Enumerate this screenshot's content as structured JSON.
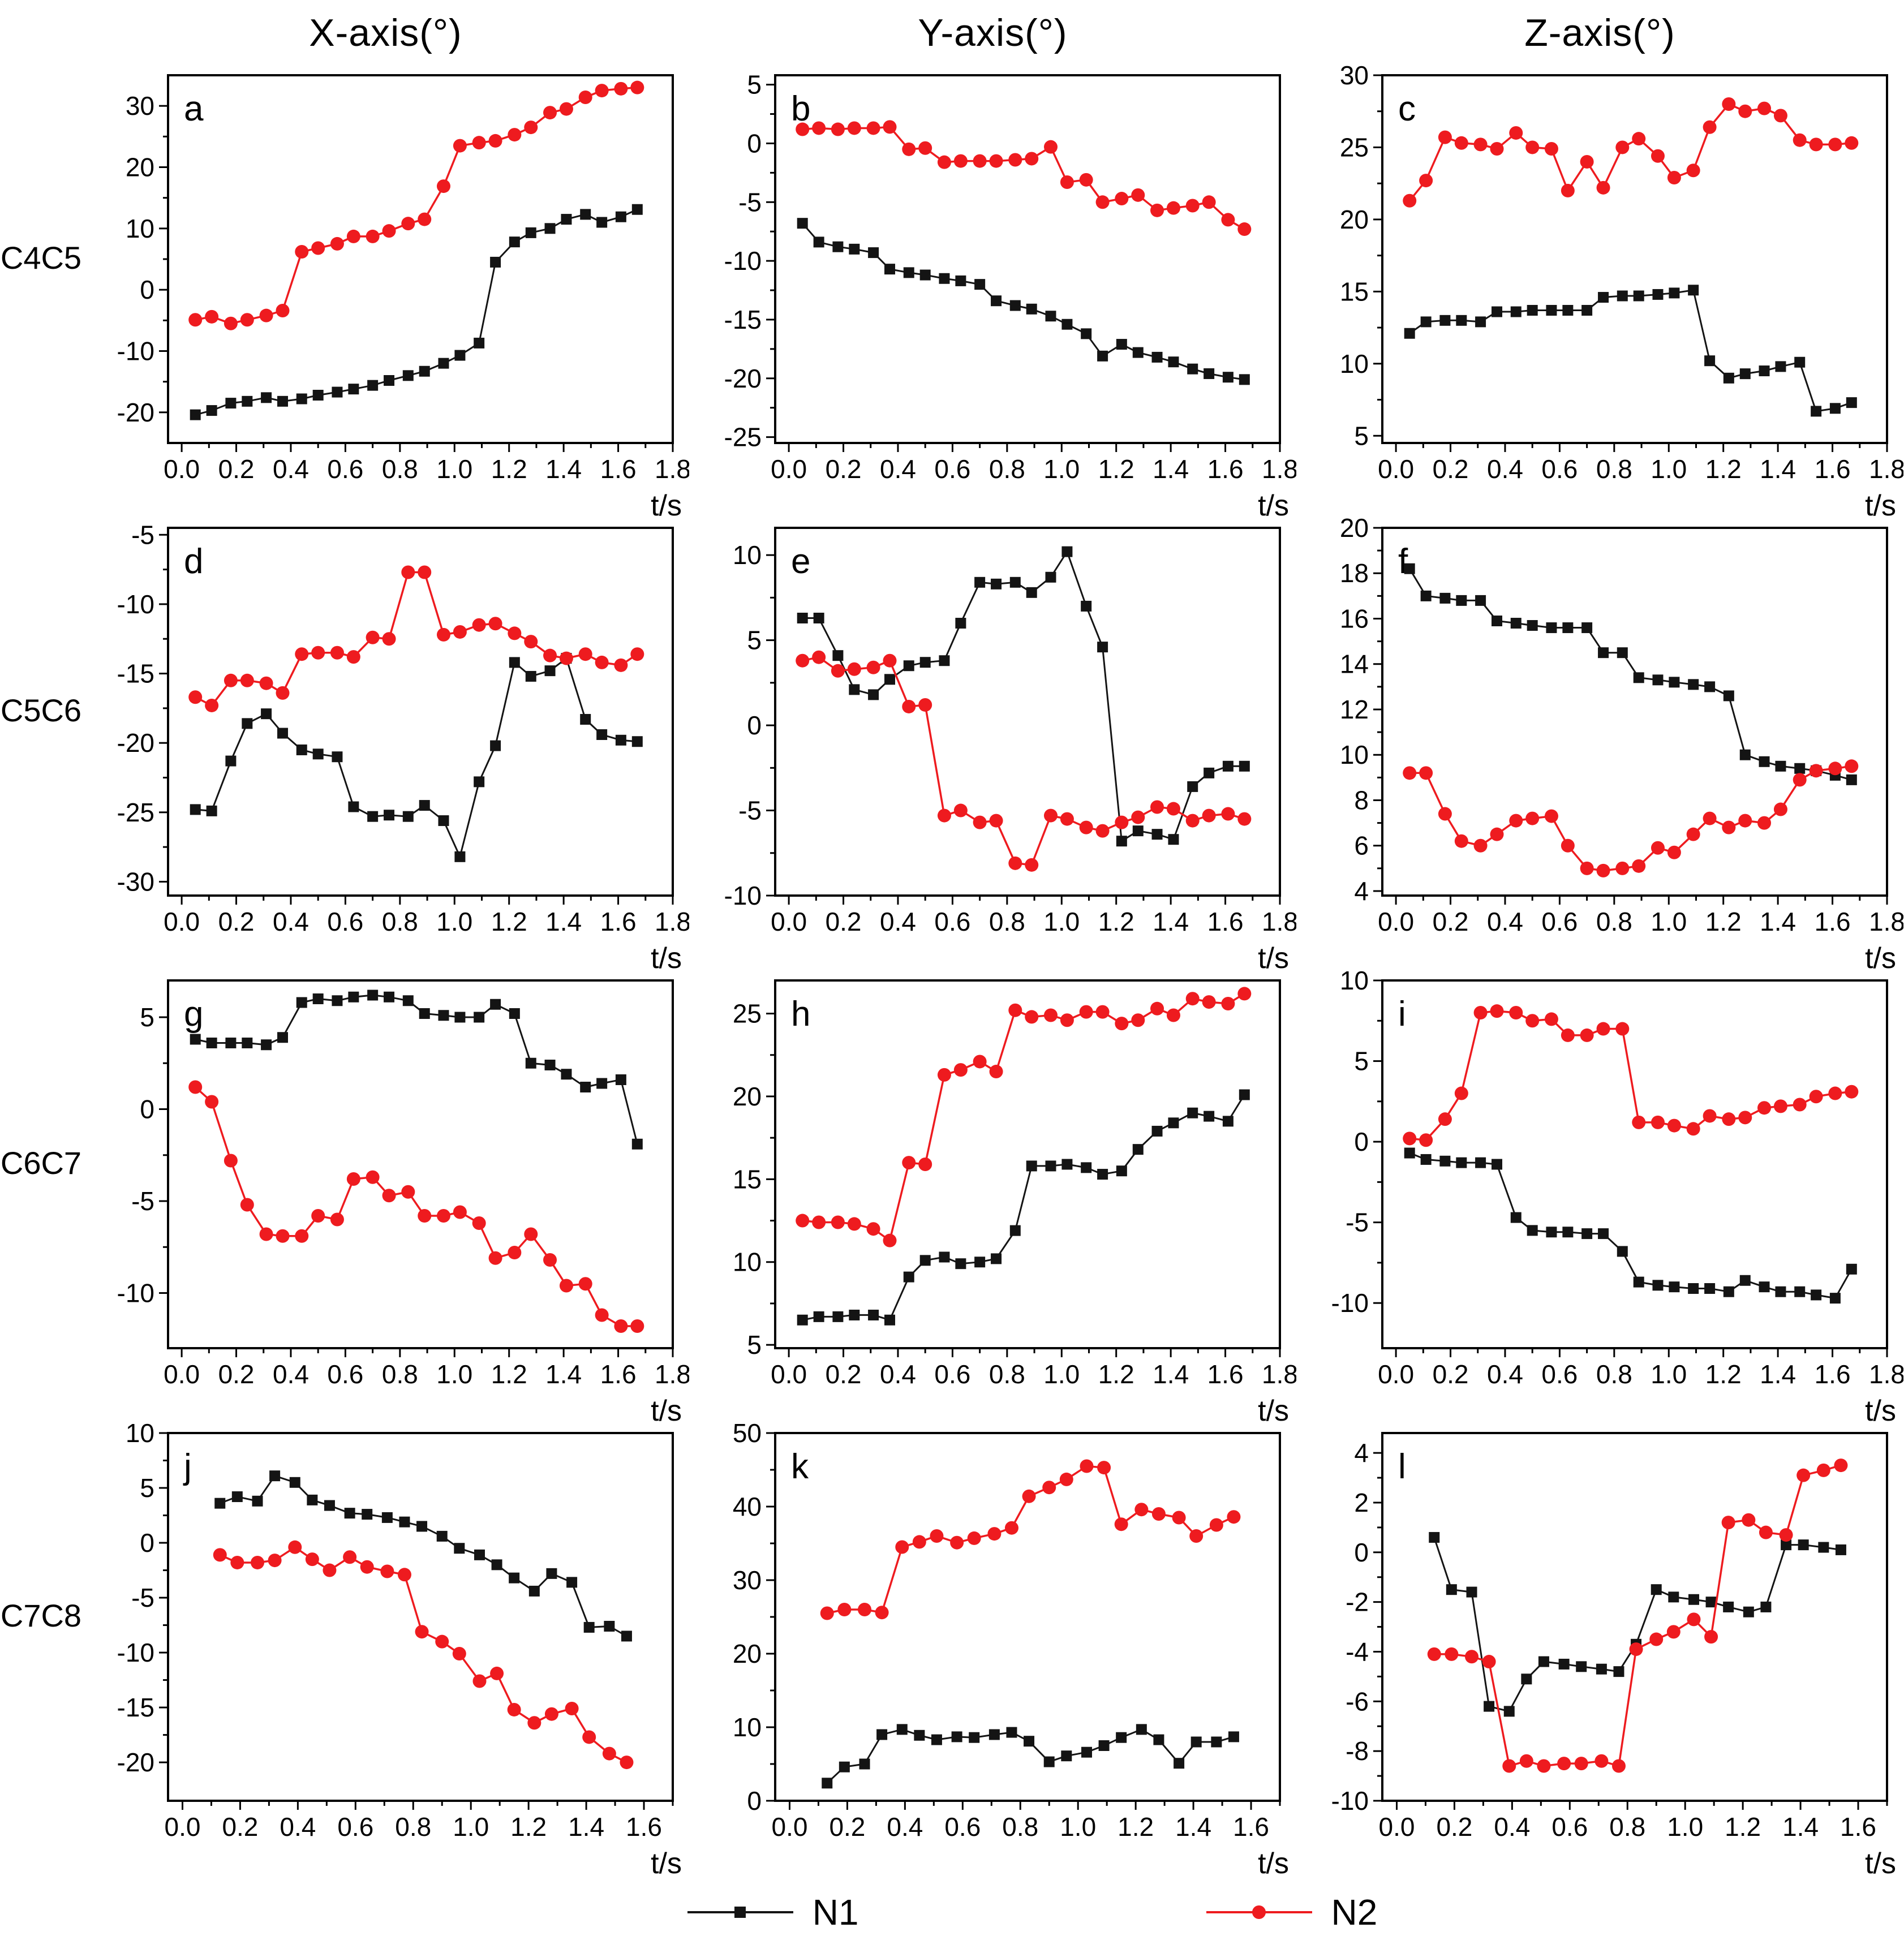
{
  "columns": [
    "X-axis(°)",
    "Y-axis(°)",
    "Z-axis(°)"
  ],
  "rows": [
    "C4C5",
    "C5C6",
    "C6C7",
    "C7C8"
  ],
  "x_axis_label": "t/s",
  "legend": [
    {
      "label": "N1",
      "color": "#141414",
      "marker": "square"
    },
    {
      "label": "N2",
      "color": "#ee1b1f",
      "marker": "circle"
    }
  ],
  "time_grids": {
    "g26": [
      0.05,
      0.11,
      0.18,
      0.24,
      0.31,
      0.37,
      0.44,
      0.5,
      0.57,
      0.63,
      0.7,
      0.76,
      0.83,
      0.89,
      0.96,
      1.02,
      1.09,
      1.15,
      1.22,
      1.28,
      1.35,
      1.41,
      1.48,
      1.54,
      1.61,
      1.67
    ],
    "g23": [
      0.13,
      0.19,
      0.26,
      0.32,
      0.39,
      0.45,
      0.51,
      0.58,
      0.64,
      0.71,
      0.77,
      0.83,
      0.9,
      0.96,
      1.03,
      1.09,
      1.15,
      1.22,
      1.28,
      1.35,
      1.41,
      1.48,
      1.54
    ]
  },
  "chart_data": [
    {
      "type": "line",
      "letter": "a",
      "row_label": "C4C5",
      "col_label": "X-axis(°)",
      "x_grid": "g26",
      "xlim": [
        -0.05,
        1.8
      ],
      "xticks": [
        0.0,
        0.2,
        0.4,
        0.6,
        0.8,
        1.0,
        1.2,
        1.4,
        1.6,
        1.8
      ],
      "ylim": [
        -25,
        35
      ],
      "yticks": [
        30,
        20,
        10,
        0,
        -10,
        -20
      ],
      "series": [
        {
          "name": "N1",
          "values": [
            -20.4,
            -19.7,
            -18.5,
            -18.2,
            -17.6,
            -18.2,
            -17.8,
            -17.2,
            -16.7,
            -16.2,
            -15.6,
            -14.8,
            -14.0,
            -13.3,
            -12.0,
            -10.7,
            -8.7,
            4.5,
            7.8,
            9.3,
            10.0,
            11.5,
            12.3,
            11.0,
            11.9,
            13.1
          ]
        },
        {
          "name": "N2",
          "values": [
            -4.9,
            -4.4,
            -5.5,
            -4.9,
            -4.2,
            -3.4,
            6.2,
            6.8,
            7.5,
            8.7,
            8.7,
            9.6,
            10.8,
            11.5,
            16.9,
            23.5,
            24.0,
            24.3,
            25.3,
            26.5,
            28.9,
            29.5,
            31.4,
            32.5,
            32.8,
            33.0
          ]
        }
      ]
    },
    {
      "type": "line",
      "letter": "b",
      "row_label": "C4C5",
      "col_label": "Y-axis(°)",
      "x_grid": "g26",
      "xlim": [
        -0.05,
        1.8
      ],
      "xticks": [
        0.0,
        0.2,
        0.4,
        0.6,
        0.8,
        1.0,
        1.2,
        1.4,
        1.6,
        1.8
      ],
      "ylim": [
        -25.5,
        5.8
      ],
      "yticks": [
        5,
        0,
        -5,
        -10,
        -15,
        -20,
        -25
      ],
      "series": [
        {
          "name": "N1",
          "values": [
            -6.8,
            -8.4,
            -8.8,
            -9.0,
            -9.3,
            -10.7,
            -11.0,
            -11.2,
            -11.5,
            -11.7,
            -12.0,
            -13.4,
            -13.8,
            -14.1,
            -14.7,
            -15.4,
            -16.2,
            -18.1,
            -17.1,
            -17.8,
            -18.2,
            -18.6,
            -19.2,
            -19.6,
            -19.9,
            -20.1
          ]
        },
        {
          "name": "N2",
          "values": [
            1.2,
            1.3,
            1.2,
            1.3,
            1.3,
            1.4,
            -0.5,
            -0.4,
            -1.6,
            -1.5,
            -1.5,
            -1.5,
            -1.4,
            -1.3,
            -0.3,
            -3.3,
            -3.1,
            -5.0,
            -4.7,
            -4.4,
            -5.7,
            -5.5,
            -5.3,
            -5.0,
            -6.5,
            -7.3
          ]
        }
      ]
    },
    {
      "type": "line",
      "letter": "c",
      "row_label": "C4C5",
      "col_label": "Z-axis(°)",
      "x_grid": "g26",
      "xlim": [
        -0.05,
        1.8
      ],
      "xticks": [
        0.0,
        0.2,
        0.4,
        0.6,
        0.8,
        1.0,
        1.2,
        1.4,
        1.6,
        1.8
      ],
      "ylim": [
        4.5,
        30
      ],
      "yticks": [
        30,
        25,
        20,
        15,
        10,
        5
      ],
      "series": [
        {
          "name": "N1",
          "values": [
            12.1,
            12.9,
            13.0,
            13.0,
            12.9,
            13.6,
            13.6,
            13.7,
            13.7,
            13.7,
            13.7,
            14.6,
            14.7,
            14.7,
            14.8,
            14.9,
            15.1,
            10.2,
            9.0,
            9.3,
            9.5,
            9.8,
            10.1,
            6.7,
            6.9,
            7.3
          ]
        },
        {
          "name": "N2",
          "values": [
            21.3,
            22.7,
            25.7,
            25.3,
            25.2,
            24.9,
            26.0,
            25.0,
            24.9,
            22.0,
            24.0,
            22.2,
            25.0,
            25.6,
            24.4,
            22.9,
            23.4,
            26.4,
            28.0,
            27.5,
            27.7,
            27.2,
            25.5,
            25.2,
            25.2,
            25.3
          ]
        }
      ]
    },
    {
      "type": "line",
      "letter": "d",
      "row_label": "C5C6",
      "col_label": "X-axis(°)",
      "x_grid": "g26",
      "xlim": [
        -0.05,
        1.8
      ],
      "xticks": [
        0.0,
        0.2,
        0.4,
        0.6,
        0.8,
        1.0,
        1.2,
        1.4,
        1.6,
        1.8
      ],
      "ylim": [
        -31,
        -4.5
      ],
      "yticks": [
        -5,
        -10,
        -15,
        -20,
        -25,
        -30
      ],
      "series": [
        {
          "name": "N1",
          "values": [
            -24.8,
            -24.9,
            -21.3,
            -18.6,
            -17.9,
            -19.3,
            -20.5,
            -20.8,
            -21.0,
            -24.6,
            -25.3,
            -25.2,
            -25.3,
            -24.5,
            -25.6,
            -28.2,
            -22.8,
            -20.2,
            -14.2,
            -15.2,
            -14.8,
            -13.9,
            -18.3,
            -19.4,
            -19.8,
            -19.9
          ]
        },
        {
          "name": "N2",
          "values": [
            -16.7,
            -17.3,
            -15.5,
            -15.5,
            -15.7,
            -16.4,
            -13.6,
            -13.5,
            -13.5,
            -13.8,
            -12.4,
            -12.5,
            -7.7,
            -7.7,
            -12.2,
            -12.0,
            -11.5,
            -11.4,
            -12.1,
            -12.7,
            -13.7,
            -13.9,
            -13.6,
            -14.2,
            -14.4,
            -13.6
          ]
        }
      ]
    },
    {
      "type": "line",
      "letter": "e",
      "row_label": "C5C6",
      "col_label": "Y-axis(°)",
      "x_grid": "g26",
      "xlim": [
        -0.05,
        1.8
      ],
      "xticks": [
        0.0,
        0.2,
        0.4,
        0.6,
        0.8,
        1.0,
        1.2,
        1.4,
        1.6,
        1.8
      ],
      "ylim": [
        -10,
        11.6
      ],
      "yticks": [
        10,
        5,
        0,
        -5,
        -10
      ],
      "series": [
        {
          "name": "N1",
          "values": [
            6.3,
            6.3,
            4.1,
            2.1,
            1.8,
            2.7,
            3.5,
            3.7,
            3.8,
            6.0,
            8.4,
            8.3,
            8.4,
            7.8,
            8.7,
            10.2,
            7.0,
            4.6,
            -6.8,
            -6.2,
            -6.4,
            -6.7,
            -3.6,
            -2.8,
            -2.4,
            -2.4
          ]
        },
        {
          "name": "N2",
          "values": [
            3.8,
            4.0,
            3.2,
            3.3,
            3.4,
            3.8,
            1.1,
            1.2,
            -5.3,
            -5.0,
            -5.7,
            -5.6,
            -8.1,
            -8.2,
            -5.3,
            -5.5,
            -6.0,
            -6.2,
            -5.7,
            -5.4,
            -4.8,
            -4.9,
            -5.6,
            -5.3,
            -5.2,
            -5.5
          ]
        }
      ]
    },
    {
      "type": "line",
      "letter": "f",
      "row_label": "C5C6",
      "col_label": "Z-axis(°)",
      "x_grid": "g26",
      "xlim": [
        -0.05,
        1.8
      ],
      "xticks": [
        0.0,
        0.2,
        0.4,
        0.6,
        0.8,
        1.0,
        1.2,
        1.4,
        1.6,
        1.8
      ],
      "ylim": [
        3.8,
        20
      ],
      "yticks": [
        20,
        18,
        16,
        14,
        12,
        10,
        8,
        6,
        4
      ],
      "series": [
        {
          "name": "N1",
          "values": [
            18.2,
            17.0,
            16.9,
            16.8,
            16.8,
            15.9,
            15.8,
            15.7,
            15.6,
            15.6,
            15.6,
            14.5,
            14.5,
            13.4,
            13.3,
            13.2,
            13.1,
            13.0,
            12.6,
            10.0,
            9.7,
            9.5,
            9.4,
            9.3,
            9.1,
            8.9
          ]
        },
        {
          "name": "N2",
          "values": [
            9.2,
            9.2,
            7.4,
            6.2,
            6.0,
            6.5,
            7.1,
            7.2,
            7.3,
            6.0,
            5.0,
            4.9,
            5.0,
            5.1,
            5.9,
            5.7,
            6.5,
            7.2,
            6.8,
            7.1,
            7.0,
            7.6,
            8.9,
            9.3,
            9.4,
            9.5
          ]
        }
      ]
    },
    {
      "type": "line",
      "letter": "g",
      "row_label": "C6C7",
      "col_label": "X-axis(°)",
      "x_grid": "g26",
      "xlim": [
        -0.05,
        1.8
      ],
      "xticks": [
        0.0,
        0.2,
        0.4,
        0.6,
        0.8,
        1.0,
        1.2,
        1.4,
        1.6,
        1.8
      ],
      "ylim": [
        -13,
        7
      ],
      "yticks": [
        5,
        0,
        -5,
        -10
      ],
      "series": [
        {
          "name": "N1",
          "values": [
            3.8,
            3.6,
            3.6,
            3.6,
            3.5,
            3.9,
            5.8,
            6.0,
            5.9,
            6.1,
            6.2,
            6.1,
            5.9,
            5.2,
            5.1,
            5.0,
            5.0,
            5.7,
            5.2,
            2.5,
            2.4,
            1.9,
            1.2,
            1.4,
            1.6,
            -1.9
          ]
        },
        {
          "name": "N2",
          "values": [
            1.2,
            0.4,
            -2.8,
            -5.2,
            -6.8,
            -6.9,
            -6.9,
            -5.8,
            -6.0,
            -3.8,
            -3.7,
            -4.7,
            -4.5,
            -5.8,
            -5.8,
            -5.6,
            -6.2,
            -8.1,
            -7.8,
            -6.8,
            -8.2,
            -9.6,
            -9.5,
            -11.2,
            -11.8,
            -11.8
          ]
        }
      ]
    },
    {
      "type": "line",
      "letter": "h",
      "row_label": "C6C7",
      "col_label": "Y-axis(°)",
      "x_grid": "g26",
      "xlim": [
        -0.05,
        1.8
      ],
      "xticks": [
        0.0,
        0.2,
        0.4,
        0.6,
        0.8,
        1.0,
        1.2,
        1.4,
        1.6,
        1.8
      ],
      "ylim": [
        4.8,
        27
      ],
      "yticks": [
        25,
        20,
        15,
        10,
        5
      ],
      "series": [
        {
          "name": "N1",
          "values": [
            6.5,
            6.7,
            6.7,
            6.8,
            6.8,
            6.5,
            9.1,
            10.1,
            10.3,
            9.9,
            10.0,
            10.2,
            11.9,
            15.8,
            15.8,
            15.9,
            15.7,
            15.3,
            15.5,
            16.8,
            17.9,
            18.4,
            19.0,
            18.8,
            18.5,
            20.1
          ]
        },
        {
          "name": "N2",
          "values": [
            12.5,
            12.4,
            12.4,
            12.3,
            12.0,
            11.3,
            16.0,
            15.9,
            21.3,
            21.6,
            22.1,
            21.5,
            25.2,
            24.8,
            24.9,
            24.6,
            25.1,
            25.1,
            24.4,
            24.6,
            25.3,
            24.9,
            25.9,
            25.7,
            25.6,
            26.2
          ]
        }
      ]
    },
    {
      "type": "line",
      "letter": "i",
      "row_label": "C6C7",
      "col_label": "Z-axis(°)",
      "x_grid": "g26",
      "xlim": [
        -0.05,
        1.8
      ],
      "xticks": [
        0.0,
        0.2,
        0.4,
        0.6,
        0.8,
        1.0,
        1.2,
        1.4,
        1.6,
        1.8
      ],
      "ylim": [
        -12.8,
        10
      ],
      "yticks": [
        10,
        5,
        0,
        -5,
        -10
      ],
      "series": [
        {
          "name": "N1",
          "values": [
            -0.7,
            -1.1,
            -1.2,
            -1.3,
            -1.3,
            -1.4,
            -4.7,
            -5.5,
            -5.6,
            -5.6,
            -5.7,
            -5.7,
            -6.8,
            -8.7,
            -8.9,
            -9.0,
            -9.1,
            -9.1,
            -9.3,
            -8.6,
            -9.0,
            -9.3,
            -9.3,
            -9.5,
            -9.7,
            -7.9
          ]
        },
        {
          "name": "N2",
          "values": [
            0.2,
            0.1,
            1.4,
            3.0,
            8.0,
            8.1,
            8.0,
            7.5,
            7.6,
            6.6,
            6.6,
            7.0,
            7.0,
            1.2,
            1.2,
            1.0,
            0.8,
            1.6,
            1.4,
            1.5,
            2.1,
            2.2,
            2.3,
            2.8,
            3.0,
            3.1
          ]
        }
      ]
    },
    {
      "type": "line",
      "letter": "j",
      "row_label": "C7C8",
      "col_label": "X-axis(°)",
      "x_grid": "g23",
      "xlim": [
        -0.05,
        1.7
      ],
      "xticks": [
        0.0,
        0.2,
        0.4,
        0.6,
        0.8,
        1.0,
        1.2,
        1.4,
        1.6
      ],
      "ylim": [
        -23.5,
        10
      ],
      "yticks": [
        10,
        5,
        0,
        -5,
        -10,
        -15,
        -20
      ],
      "series": [
        {
          "name": "N1",
          "values": [
            3.6,
            4.2,
            3.8,
            6.1,
            5.5,
            3.9,
            3.4,
            2.7,
            2.6,
            2.3,
            1.9,
            1.5,
            0.6,
            -0.5,
            -1.1,
            -2.0,
            -3.2,
            -4.4,
            -2.8,
            -3.6,
            -7.7,
            -7.6,
            -8.5
          ]
        },
        {
          "name": "N2",
          "values": [
            -1.1,
            -1.8,
            -1.8,
            -1.6,
            -0.4,
            -1.5,
            -2.5,
            -1.3,
            -2.2,
            -2.6,
            -2.9,
            -8.1,
            -9.0,
            -10.1,
            -12.6,
            -11.9,
            -15.2,
            -16.4,
            -15.6,
            -15.1,
            -17.7,
            -19.2,
            -20.0
          ]
        }
      ]
    },
    {
      "type": "line",
      "letter": "k",
      "row_label": "C7C8",
      "col_label": "Y-axis(°)",
      "x_grid": "g23",
      "xlim": [
        -0.05,
        1.7
      ],
      "xticks": [
        0.0,
        0.2,
        0.4,
        0.6,
        0.8,
        1.0,
        1.2,
        1.4,
        1.6
      ],
      "ylim": [
        0,
        50
      ],
      "yticks": [
        50,
        40,
        30,
        20,
        10,
        0
      ],
      "series": [
        {
          "name": "N1",
          "values": [
            2.4,
            4.6,
            5.0,
            9.0,
            9.7,
            8.9,
            8.3,
            8.7,
            8.6,
            9.0,
            9.3,
            8.1,
            5.3,
            6.1,
            6.6,
            7.5,
            8.6,
            9.7,
            8.3,
            5.1,
            8.0,
            8.0,
            8.7
          ]
        },
        {
          "name": "N2",
          "values": [
            25.5,
            26.0,
            26.0,
            25.6,
            34.5,
            35.2,
            36.0,
            35.1,
            35.7,
            36.3,
            37.1,
            41.4,
            42.6,
            43.7,
            45.5,
            45.3,
            37.6,
            39.6,
            39.0,
            38.5,
            36.0,
            37.5,
            38.6
          ]
        }
      ]
    },
    {
      "type": "line",
      "letter": "l",
      "row_label": "C7C8",
      "col_label": "Z-axis(°)",
      "x_grid": "g23",
      "xlim": [
        -0.05,
        1.7
      ],
      "xticks": [
        0.0,
        0.2,
        0.4,
        0.6,
        0.8,
        1.0,
        1.2,
        1.4,
        1.6
      ],
      "ylim": [
        -10,
        4.8
      ],
      "yticks": [
        4,
        2,
        0,
        -2,
        -4,
        -6,
        -8,
        -10
      ],
      "series": [
        {
          "name": "N1",
          "values": [
            0.6,
            -1.5,
            -1.6,
            -6.2,
            -6.4,
            -5.1,
            -4.4,
            -4.5,
            -4.6,
            -4.7,
            -4.8,
            -3.7,
            -1.5,
            -1.8,
            -1.9,
            -2.0,
            -2.2,
            -2.4,
            -2.2,
            0.3,
            0.3,
            0.2,
            0.1
          ]
        },
        {
          "name": "N2",
          "values": [
            -4.1,
            -4.1,
            -4.2,
            -4.4,
            -8.6,
            -8.4,
            -8.6,
            -8.5,
            -8.5,
            -8.4,
            -8.6,
            -3.9,
            -3.5,
            -3.2,
            -2.7,
            -3.4,
            1.2,
            1.3,
            0.8,
            0.7,
            3.1,
            3.3,
            3.5
          ]
        }
      ]
    }
  ]
}
